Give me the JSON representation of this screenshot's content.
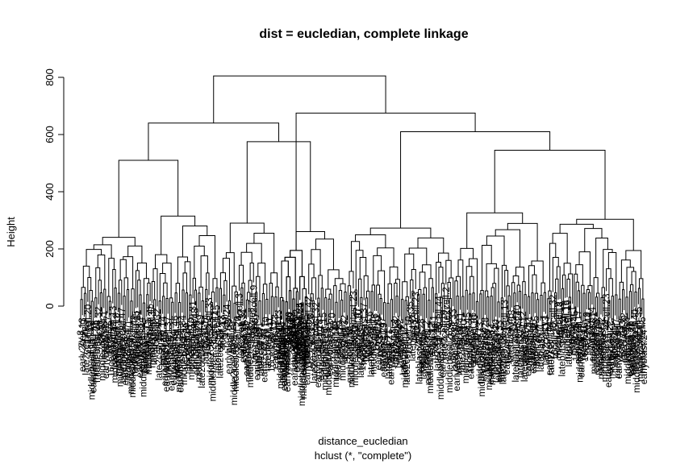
{
  "chart_data": {
    "type": "dendrogram",
    "title": "dist = eucledian, complete linkage",
    "xlabel": "distance_eucledian",
    "sub_label": "hclust (*, \"complete\")",
    "ylabel": "Height",
    "ylim": [
      0,
      850
    ],
    "y_ticks": [
      0,
      200,
      400,
      600,
      800
    ],
    "grid": false,
    "merge_heights_major": [
      805,
      765,
      675,
      640,
      610,
      575,
      545,
      520,
      510,
      500,
      440,
      430,
      395
    ],
    "leaf_labels_visible": [
      "16cell.17",
      "early2cell",
      "4cell.22",
      "middleblast.29",
      "lateblast.30",
      "16cell.18",
      "8cell.42",
      "middle2cell"
    ],
    "leaf_count_estimate": 317
  }
}
